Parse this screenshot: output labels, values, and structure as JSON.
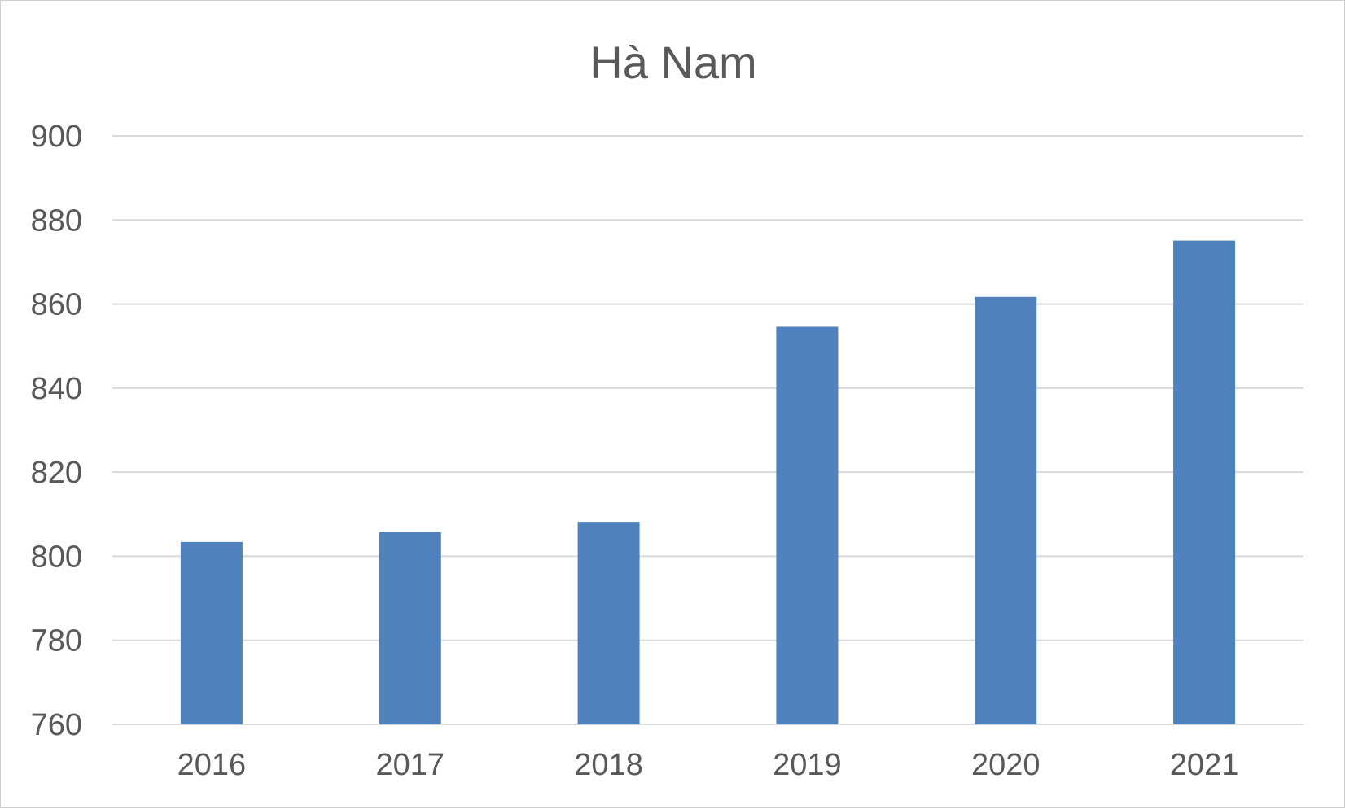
{
  "chart_data": {
    "type": "bar",
    "title": "Hà Nam",
    "xlabel": "",
    "ylabel": "",
    "categories": [
      "2016",
      "2017",
      "2018",
      "2019",
      "2020",
      "2021"
    ],
    "series": [
      {
        "values": [
          803.4,
          805.7,
          808.2,
          854.6,
          861.7,
          875.1
        ],
        "color": "#4f81bd"
      }
    ],
    "ylim": [
      760,
      900
    ],
    "yticks": [
      760,
      780,
      800,
      820,
      840,
      860,
      880,
      900
    ],
    "grid": true,
    "legend": "none"
  }
}
